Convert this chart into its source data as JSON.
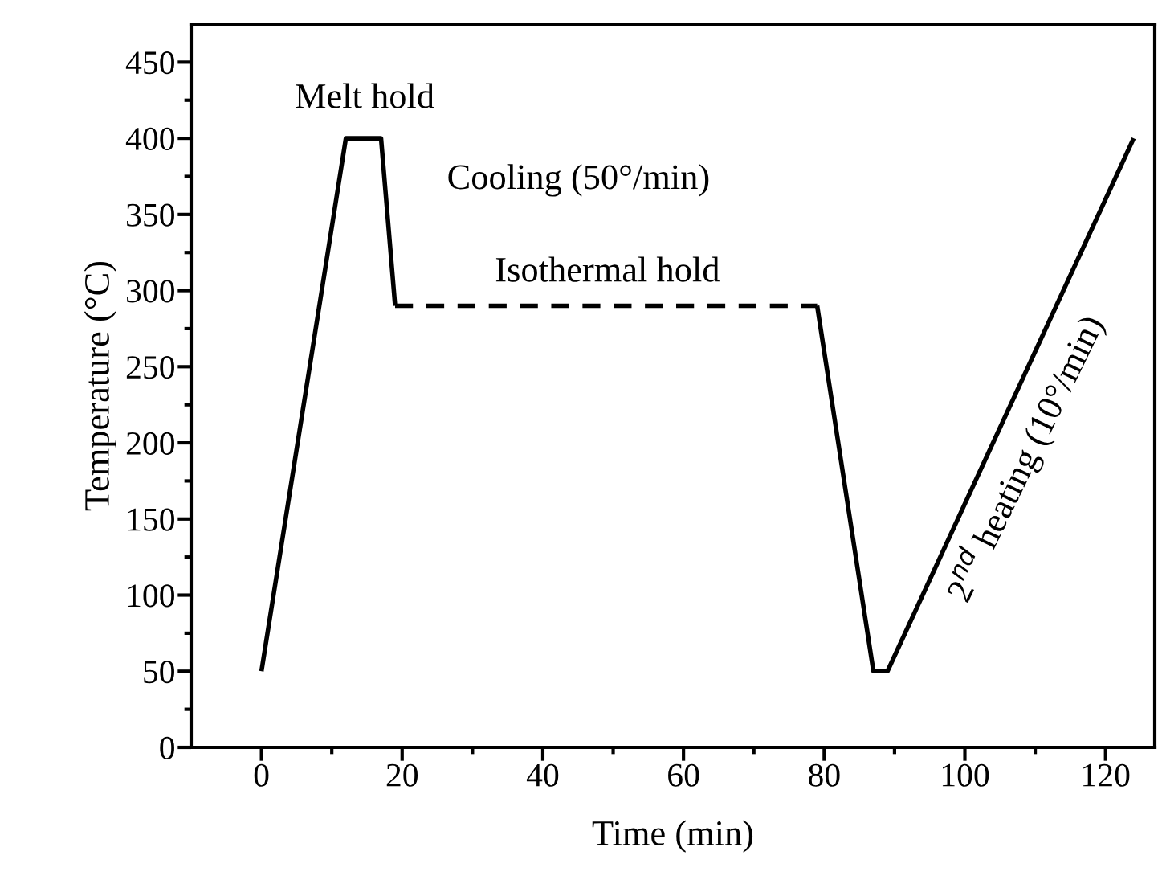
{
  "chart_data": {
    "type": "line",
    "xlabel": "Time (min)",
    "ylabel": "Temperature (°C)",
    "series": [
      {
        "x": [
          0,
          12,
          17,
          19
        ],
        "values": [
          50,
          400,
          400,
          290
        ],
        "color": "#000000",
        "line_style": "solid"
      },
      {
        "x": [
          19,
          79
        ],
        "values": [
          290,
          290
        ],
        "color": "#000000",
        "line_style": "dashed"
      },
      {
        "x": [
          79,
          87,
          89,
          124
        ],
        "values": [
          290,
          50,
          50,
          400
        ],
        "color": "#000000",
        "line_style": "solid"
      }
    ],
    "xlim": [
      -10,
      127
    ],
    "ylim": [
      0,
      475
    ],
    "xticks": [
      0,
      {
        "value": 10,
        "label": null
      },
      20,
      {
        "value": 30,
        "label": null
      },
      40,
      {
        "value": 50,
        "label": null
      },
      60,
      {
        "value": 70,
        "label": null
      },
      80,
      {
        "value": 90,
        "label": null
      },
      100,
      {
        "value": 110,
        "label": null
      },
      120
    ],
    "yticks": [
      0,
      {
        "value": 25,
        "label": null
      },
      50,
      {
        "value": 75,
        "label": null
      },
      100,
      {
        "value": 125,
        "label": null
      },
      150,
      {
        "value": 175,
        "label": null
      },
      200,
      {
        "value": 225,
        "label": null
      },
      250,
      {
        "value": 275,
        "label": null
      },
      300,
      {
        "value": 325,
        "label": null
      },
      350,
      {
        "value": 375,
        "label": null
      },
      400,
      {
        "value": 425,
        "label": null
      },
      450
    ],
    "annotations": [
      "Melt hold",
      "Cooling (50°/min)",
      "Isothermal hold",
      "2$^{nd}$ heating (10°/min)"
    ],
    "grid": false,
    "legend": false,
    "marker": "none"
  }
}
